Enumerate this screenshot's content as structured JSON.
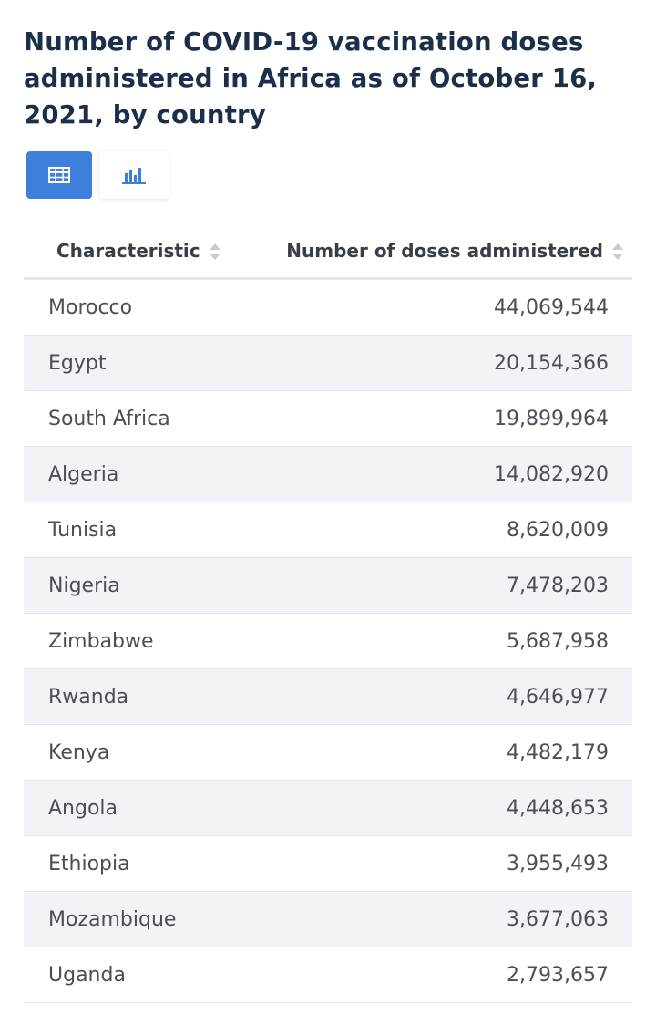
{
  "title": "Number of COVID-19 vaccination doses administered in Africa as of October 16, 2021, by country",
  "view_toggle": {
    "table_icon": "table-icon",
    "chart_icon": "bar-chart-icon",
    "active": "table"
  },
  "colors": {
    "accent": "#3f7fdc",
    "title": "#1b2f4b",
    "row_stripe": "#f1f3f7"
  },
  "chart_data": {
    "type": "table",
    "title": "Number of COVID-19 vaccination doses administered in Africa as of October 16, 2021, by country",
    "columns": [
      "Characteristic",
      "Number of doses administered"
    ],
    "categories": [
      "Morocco",
      "Egypt",
      "South Africa",
      "Algeria",
      "Tunisia",
      "Nigeria",
      "Zimbabwe",
      "Rwanda",
      "Kenya",
      "Angola",
      "Ethiopia",
      "Mozambique",
      "Uganda"
    ],
    "values": [
      44069544,
      20154366,
      19899964,
      14082920,
      8620009,
      7478203,
      5687958,
      4646977,
      4482179,
      4448653,
      3955493,
      3677063,
      2793657
    ],
    "rows": [
      {
        "country": "Morocco",
        "doses": "44,069,544"
      },
      {
        "country": "Egypt",
        "doses": "20,154,366"
      },
      {
        "country": "South Africa",
        "doses": "19,899,964"
      },
      {
        "country": "Algeria",
        "doses": "14,082,920"
      },
      {
        "country": "Tunisia",
        "doses": "8,620,009"
      },
      {
        "country": "Nigeria",
        "doses": "7,478,203"
      },
      {
        "country": "Zimbabwe",
        "doses": "5,687,958"
      },
      {
        "country": "Rwanda",
        "doses": "4,646,977"
      },
      {
        "country": "Kenya",
        "doses": "4,482,179"
      },
      {
        "country": "Angola",
        "doses": "4,448,653"
      },
      {
        "country": "Ethiopia",
        "doses": "3,955,493"
      },
      {
        "country": "Mozambique",
        "doses": "3,677,063"
      },
      {
        "country": "Uganda",
        "doses": "2,793,657"
      }
    ]
  }
}
